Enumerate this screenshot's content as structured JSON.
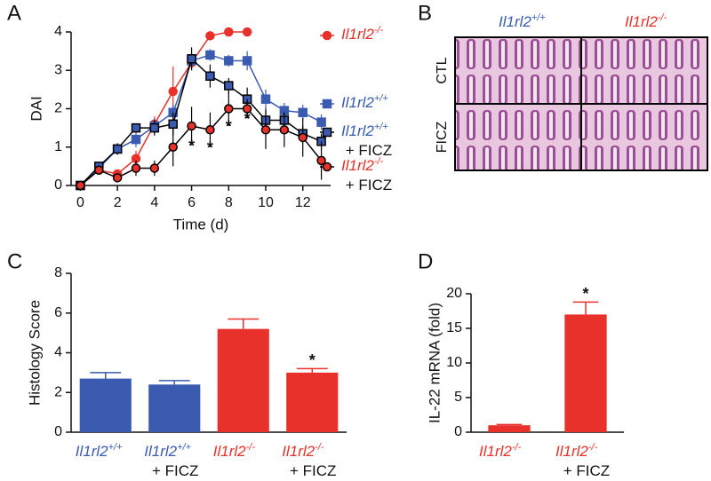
{
  "chart_data": [
    {
      "type": "line",
      "panel": "A",
      "y_label": "DAI",
      "x_label": "Time (d)",
      "x": [
        0,
        1,
        2,
        3,
        4,
        5,
        6,
        7,
        8,
        9,
        10,
        11,
        12,
        13
      ],
      "xlim": [
        -0.5,
        13.5
      ],
      "xticks": [
        0,
        2,
        4,
        6,
        8,
        10,
        12
      ],
      "ylim": [
        0,
        4
      ],
      "yticks": [
        0,
        1,
        2,
        3,
        4
      ],
      "series": [
        {
          "name": "Il1rl2-/-",
          "color": "#e8312a",
          "edgecolor": "#e8312a",
          "marker": "circle",
          "values": [
            0,
            0.4,
            0.3,
            0.7,
            1.6,
            2.45,
            3.2,
            3.9,
            4,
            4,
            null,
            null,
            null,
            null
          ],
          "errors": [
            0,
            0.1,
            0.1,
            0.2,
            0.2,
            0.65,
            0.15,
            0.1,
            0,
            0,
            null,
            null,
            null,
            null
          ]
        },
        {
          "name": "Il1rl2+/+",
          "color": "#3a5bb0",
          "edgecolor": "#3a5bb0",
          "marker": "square",
          "values": [
            0,
            0.45,
            0.95,
            1.2,
            1.55,
            1.9,
            3.25,
            3.4,
            3.25,
            3.25,
            2.25,
            1.95,
            1.9,
            1.65
          ],
          "errors": [
            0,
            0.1,
            0.15,
            0.2,
            0.2,
            0.2,
            0.2,
            0.15,
            0.15,
            0.25,
            0.25,
            0.2,
            0.2,
            0.2
          ]
        },
        {
          "name": "Il1rl2+/+ + FICZ",
          "color": "#3a5bb0",
          "edgecolor": "#000000",
          "marker": "square",
          "values": [
            0,
            0.5,
            0.95,
            1.5,
            1.5,
            1.6,
            3.3,
            2.85,
            2.6,
            2.25,
            1.7,
            1.7,
            1.35,
            1.15
          ],
          "errors": [
            0,
            0.1,
            0.15,
            0.1,
            0.2,
            0.3,
            0.3,
            0.3,
            0.2,
            0.3,
            0.3,
            0.2,
            0.2,
            0.2
          ]
        },
        {
          "name": "Il1rl2-/- + FICZ",
          "color": "#e8312a",
          "edgecolor": "#000000",
          "marker": "circle",
          "values": [
            0,
            0.4,
            0.2,
            0.45,
            0.45,
            1.0,
            1.55,
            1.45,
            2.0,
            2.0,
            1.45,
            1.45,
            1.25,
            0.65
          ],
          "errors": [
            0,
            0.1,
            0.1,
            0.2,
            0.2,
            0.5,
            0.5,
            0.45,
            0.45,
            0.25,
            0.5,
            0.45,
            0.5,
            0.5
          ]
        }
      ],
      "annotations": [
        {
          "x": 6,
          "text": "*"
        },
        {
          "x": 7,
          "text": "*"
        },
        {
          "x": 8,
          "text": "*"
        },
        {
          "x": 9,
          "text": "*"
        }
      ]
    },
    {
      "type": "image-grid",
      "panel": "B",
      "columns": [
        "Il1rl2+/+",
        "Il1rl2-/-"
      ],
      "column_colors": [
        "#3a5bb0",
        "#e8312a"
      ],
      "rows": [
        "CTL",
        "FICZ"
      ]
    },
    {
      "type": "bar",
      "panel": "C",
      "y_label": "Histology Score",
      "categories": [
        "Il1rl2+/+",
        "Il1rl2+/+ + FICZ",
        "Il1rl2-/-",
        "Il1rl2-/- + FICZ"
      ],
      "values": [
        2.7,
        2.4,
        5.2,
        3.0
      ],
      "errors": [
        0.3,
        0.2,
        0.5,
        0.2
      ],
      "colors": [
        "#3a5bb0",
        "#3a5bb0",
        "#e8312a",
        "#e8312a"
      ],
      "ylim": [
        0,
        8
      ],
      "yticks": [
        0,
        2,
        4,
        6,
        8
      ],
      "annotations": [
        {
          "index": 3,
          "text": "*"
        }
      ]
    },
    {
      "type": "bar",
      "panel": "D",
      "y_label": "IL-22 mRNA (fold)",
      "categories": [
        "Il1rl2-/-",
        "Il1rl2-/- + FICZ"
      ],
      "values": [
        1.0,
        17.0
      ],
      "errors": [
        0.1,
        1.8
      ],
      "colors": [
        "#e8312a",
        "#e8312a"
      ],
      "ylim": [
        0,
        20
      ],
      "yticks": [
        0,
        5,
        10,
        15,
        20
      ],
      "annotations": [
        {
          "index": 1,
          "text": "*"
        }
      ]
    }
  ]
}
